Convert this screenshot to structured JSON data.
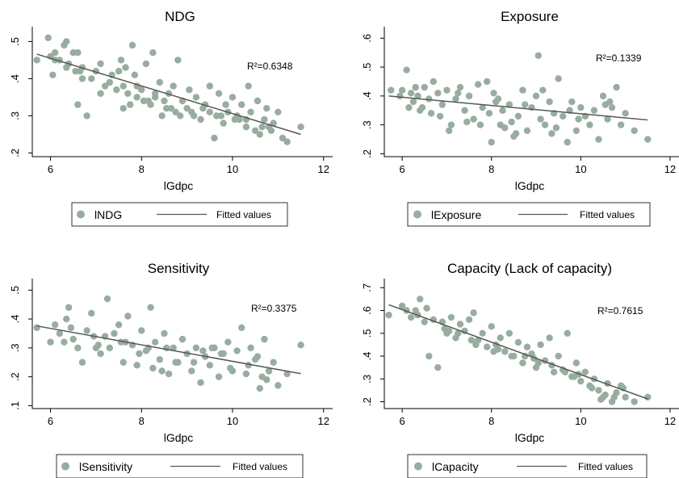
{
  "chart_data": [
    {
      "type": "scatter",
      "title": "NDG",
      "xlabel": "lGdpc",
      "ylabel": "",
      "xlim": [
        5.6,
        12.2
      ],
      "ylim": [
        0.19,
        0.54
      ],
      "xticks": [
        6,
        8,
        10,
        12
      ],
      "yticks": [
        0.2,
        0.3,
        0.4,
        0.5
      ],
      "ytick_labels": [
        ".2",
        ".3",
        ".4",
        ".5"
      ],
      "annotation": "R²=0.6348",
      "legend": {
        "marker_label": "lNDG",
        "line_label": "Fitted values"
      },
      "fit": {
        "x": [
          5.7,
          11.5
        ],
        "y": [
          0.466,
          0.25
        ]
      },
      "points": {
        "x": [
          5.7,
          5.95,
          6.0,
          6.05,
          6.1,
          6.2,
          6.3,
          6.35,
          6.4,
          6.5,
          6.55,
          6.6,
          6.65,
          6.7,
          6.8,
          6.9,
          7.0,
          7.1,
          7.2,
          7.3,
          7.35,
          7.5,
          7.55,
          7.6,
          7.65,
          7.7,
          7.8,
          7.85,
          7.9,
          8.0,
          8.05,
          8.1,
          8.2,
          8.25,
          8.3,
          8.4,
          8.45,
          8.5,
          8.6,
          8.65,
          8.7,
          8.8,
          8.85,
          8.9,
          9.0,
          9.05,
          9.1,
          9.2,
          9.3,
          9.35,
          9.4,
          9.5,
          9.6,
          9.65,
          9.7,
          9.8,
          9.85,
          9.9,
          10.0,
          10.05,
          10.1,
          10.2,
          10.3,
          10.35,
          10.4,
          10.5,
          10.55,
          10.6,
          10.7,
          10.75,
          10.8,
          10.9,
          11.0,
          11.1,
          11.2,
          11.5,
          6.1,
          6.6,
          7.6,
          8.3,
          9.5,
          10.3,
          7.1,
          7.9,
          8.75,
          9.75,
          10.65,
          6.35,
          7.45,
          8.15,
          9.15,
          10.15,
          10.85,
          6.7,
          7.75,
          8.55
        ],
        "y": [
          0.45,
          0.51,
          0.46,
          0.41,
          0.47,
          0.45,
          0.49,
          0.5,
          0.44,
          0.47,
          0.42,
          0.33,
          0.42,
          0.43,
          0.3,
          0.4,
          0.42,
          0.44,
          0.38,
          0.39,
          0.41,
          0.42,
          0.45,
          0.32,
          0.43,
          0.36,
          0.49,
          0.41,
          0.38,
          0.37,
          0.34,
          0.44,
          0.33,
          0.47,
          0.35,
          0.39,
          0.3,
          0.34,
          0.36,
          0.32,
          0.38,
          0.45,
          0.3,
          0.34,
          0.32,
          0.37,
          0.31,
          0.35,
          0.29,
          0.32,
          0.33,
          0.38,
          0.24,
          0.3,
          0.36,
          0.28,
          0.33,
          0.31,
          0.35,
          0.29,
          0.3,
          0.33,
          0.27,
          0.38,
          0.31,
          0.26,
          0.34,
          0.25,
          0.29,
          0.32,
          0.27,
          0.28,
          0.31,
          0.24,
          0.23,
          0.27,
          0.45,
          0.47,
          0.38,
          0.36,
          0.31,
          0.29,
          0.36,
          0.35,
          0.31,
          0.3,
          0.27,
          0.43,
          0.37,
          0.34,
          0.3,
          0.29,
          0.26,
          0.4,
          0.33,
          0.32
        ]
      }
    },
    {
      "type": "scatter",
      "title": "Exposure",
      "xlabel": "lGdpc",
      "ylabel": "",
      "xlim": [
        5.6,
        12.2
      ],
      "ylim": [
        0.19,
        0.64
      ],
      "xticks": [
        6,
        8,
        10,
        12
      ],
      "yticks": [
        0.2,
        0.3,
        0.4,
        0.5,
        0.6
      ],
      "ytick_labels": [
        ".2",
        ".3",
        ".4",
        ".5",
        ".6"
      ],
      "annotation": "R²=0.1339",
      "legend": {
        "marker_label": "lExposure",
        "line_label": "Fitted values"
      },
      "fit": {
        "x": [
          5.7,
          11.5
        ],
        "y": [
          0.4,
          0.317
        ]
      },
      "points": {
        "x": [
          5.75,
          5.95,
          6.0,
          6.1,
          6.15,
          6.2,
          6.3,
          6.35,
          6.4,
          6.5,
          6.6,
          6.65,
          6.7,
          6.8,
          6.9,
          7.0,
          7.1,
          7.2,
          7.3,
          7.4,
          7.5,
          7.6,
          7.7,
          7.75,
          7.8,
          7.9,
          8.0,
          8.05,
          8.1,
          8.2,
          8.25,
          8.3,
          8.4,
          8.5,
          8.6,
          8.7,
          8.8,
          8.9,
          9.0,
          9.05,
          9.1,
          9.2,
          9.3,
          9.4,
          9.5,
          9.6,
          9.7,
          9.8,
          9.9,
          10.0,
          10.1,
          10.2,
          10.3,
          10.4,
          10.5,
          10.6,
          10.7,
          10.8,
          10.9,
          11.0,
          11.2,
          11.5,
          6.25,
          6.85,
          7.45,
          8.15,
          8.75,
          9.35,
          9.95,
          10.55,
          7.05,
          7.95,
          8.55,
          9.15,
          9.75,
          10.65,
          6.45,
          7.25,
          8.45,
          9.45
        ],
        "y": [
          0.42,
          0.4,
          0.42,
          0.49,
          0.36,
          0.41,
          0.43,
          0.4,
          0.35,
          0.43,
          0.39,
          0.34,
          0.45,
          0.41,
          0.37,
          0.42,
          0.3,
          0.39,
          0.43,
          0.35,
          0.4,
          0.32,
          0.44,
          0.3,
          0.36,
          0.45,
          0.24,
          0.41,
          0.38,
          0.3,
          0.35,
          0.29,
          0.37,
          0.26,
          0.33,
          0.42,
          0.28,
          0.36,
          0.4,
          0.54,
          0.32,
          0.3,
          0.38,
          0.34,
          0.46,
          0.33,
          0.24,
          0.38,
          0.28,
          0.36,
          0.33,
          0.3,
          0.35,
          0.25,
          0.4,
          0.32,
          0.36,
          0.43,
          0.3,
          0.34,
          0.28,
          0.25,
          0.38,
          0.33,
          0.31,
          0.39,
          0.37,
          0.27,
          0.32,
          0.37,
          0.28,
          0.34,
          0.27,
          0.42,
          0.35,
          0.38,
          0.36,
          0.41,
          0.31,
          0.29
        ]
      }
    },
    {
      "type": "scatter",
      "title": "Sensitivity",
      "xlabel": "lGdpc",
      "ylabel": "",
      "xlim": [
        5.6,
        12.2
      ],
      "ylim": [
        0.09,
        0.54
      ],
      "xticks": [
        6,
        8,
        10,
        12
      ],
      "yticks": [
        0.1,
        0.2,
        0.3,
        0.4,
        0.5
      ],
      "ytick_labels": [
        ".1",
        ".2",
        ".3",
        ".4",
        ".5"
      ],
      "annotation": "R²=0.3375",
      "legend": {
        "marker_label": "lSensitivity",
        "line_label": "Fitted values"
      },
      "fit": {
        "x": [
          5.7,
          11.5
        ],
        "y": [
          0.376,
          0.211
        ]
      },
      "points": {
        "x": [
          5.7,
          6.0,
          6.1,
          6.2,
          6.3,
          6.4,
          6.5,
          6.6,
          6.7,
          6.8,
          6.9,
          7.0,
          7.1,
          7.2,
          7.25,
          7.3,
          7.4,
          7.5,
          7.6,
          7.7,
          7.8,
          7.9,
          8.0,
          8.1,
          8.2,
          8.25,
          8.3,
          8.4,
          8.5,
          8.6,
          8.7,
          8.8,
          8.9,
          9.0,
          9.1,
          9.2,
          9.3,
          9.4,
          9.5,
          9.6,
          9.7,
          9.8,
          9.9,
          10.0,
          10.1,
          10.2,
          10.3,
          10.4,
          10.5,
          10.6,
          10.7,
          10.8,
          10.9,
          11.0,
          11.2,
          11.5,
          6.35,
          6.95,
          7.55,
          8.15,
          8.75,
          9.35,
          9.95,
          10.55,
          7.05,
          7.95,
          8.55,
          9.15,
          9.75,
          10.65,
          6.45,
          7.65,
          8.45,
          9.55,
          10.35,
          10.75
        ],
        "y": [
          0.37,
          0.32,
          0.38,
          0.35,
          0.32,
          0.44,
          0.33,
          0.3,
          0.25,
          0.36,
          0.42,
          0.3,
          0.28,
          0.34,
          0.47,
          0.3,
          0.35,
          0.38,
          0.25,
          0.41,
          0.31,
          0.24,
          0.36,
          0.29,
          0.44,
          0.23,
          0.32,
          0.26,
          0.35,
          0.21,
          0.3,
          0.25,
          0.33,
          0.28,
          0.22,
          0.3,
          0.18,
          0.27,
          0.24,
          0.3,
          0.2,
          0.28,
          0.32,
          0.22,
          0.29,
          0.37,
          0.21,
          0.3,
          0.26,
          0.16,
          0.33,
          0.22,
          0.25,
          0.17,
          0.21,
          0.31,
          0.4,
          0.34,
          0.32,
          0.3,
          0.25,
          0.29,
          0.23,
          0.27,
          0.31,
          0.28,
          0.3,
          0.25,
          0.28,
          0.2,
          0.37,
          0.32,
          0.22,
          0.3,
          0.24,
          0.19
        ]
      }
    },
    {
      "type": "scatter",
      "title": "Capacity (Lack of capacity)",
      "xlabel": "lGdpc",
      "ylabel": "",
      "xlim": [
        5.6,
        12.2
      ],
      "ylim": [
        0.17,
        0.74
      ],
      "xticks": [
        6,
        8,
        10,
        12
      ],
      "yticks": [
        0.2,
        0.3,
        0.4,
        0.5,
        0.6,
        0.7
      ],
      "ytick_labels": [
        ".2",
        ".3",
        ".4",
        ".5",
        ".6",
        ".7"
      ],
      "annotation": "R²=0.7615",
      "legend": {
        "marker_label": "lCapacity",
        "line_label": "Fitted values"
      },
      "fit": {
        "x": [
          5.7,
          11.5
        ],
        "y": [
          0.625,
          0.212
        ]
      },
      "points": {
        "x": [
          5.7,
          6.0,
          6.1,
          6.2,
          6.3,
          6.4,
          6.5,
          6.6,
          6.7,
          6.8,
          6.9,
          7.0,
          7.1,
          7.2,
          7.3,
          7.4,
          7.5,
          7.6,
          7.7,
          7.8,
          7.9,
          8.0,
          8.1,
          8.2,
          8.3,
          8.4,
          8.5,
          8.6,
          8.7,
          8.8,
          8.9,
          9.0,
          9.1,
          9.2,
          9.3,
          9.4,
          9.5,
          9.6,
          9.7,
          9.8,
          9.9,
          10.0,
          10.1,
          10.2,
          10.3,
          10.4,
          10.5,
          10.6,
          10.7,
          10.8,
          10.9,
          11.0,
          11.2,
          11.5,
          6.35,
          6.95,
          7.55,
          8.15,
          8.75,
          9.35,
          9.95,
          10.55,
          7.05,
          7.65,
          8.45,
          9.05,
          9.65,
          10.25,
          10.75,
          6.55,
          7.25,
          8.05,
          8.95,
          9.85,
          10.45,
          10.95
        ],
        "y": [
          0.58,
          0.62,
          0.6,
          0.57,
          0.6,
          0.65,
          0.55,
          0.4,
          0.56,
          0.35,
          0.55,
          0.5,
          0.57,
          0.48,
          0.54,
          0.51,
          0.56,
          0.59,
          0.47,
          0.5,
          0.44,
          0.53,
          0.45,
          0.48,
          0.42,
          0.5,
          0.4,
          0.46,
          0.37,
          0.44,
          0.41,
          0.35,
          0.45,
          0.38,
          0.48,
          0.33,
          0.4,
          0.34,
          0.5,
          0.31,
          0.37,
          0.29,
          0.33,
          0.27,
          0.3,
          0.25,
          0.22,
          0.28,
          0.2,
          0.24,
          0.27,
          0.22,
          0.2,
          0.22,
          0.58,
          0.52,
          0.47,
          0.43,
          0.4,
          0.36,
          0.32,
          0.23,
          0.51,
          0.45,
          0.4,
          0.37,
          0.33,
          0.26,
          0.22,
          0.61,
          0.5,
          0.42,
          0.39,
          0.31,
          0.21,
          0.26
        ]
      }
    }
  ],
  "style": {
    "point_color": "#98ad9f",
    "line_color": "#575757",
    "frame_color": "#000000",
    "legend_border": "#000000"
  }
}
